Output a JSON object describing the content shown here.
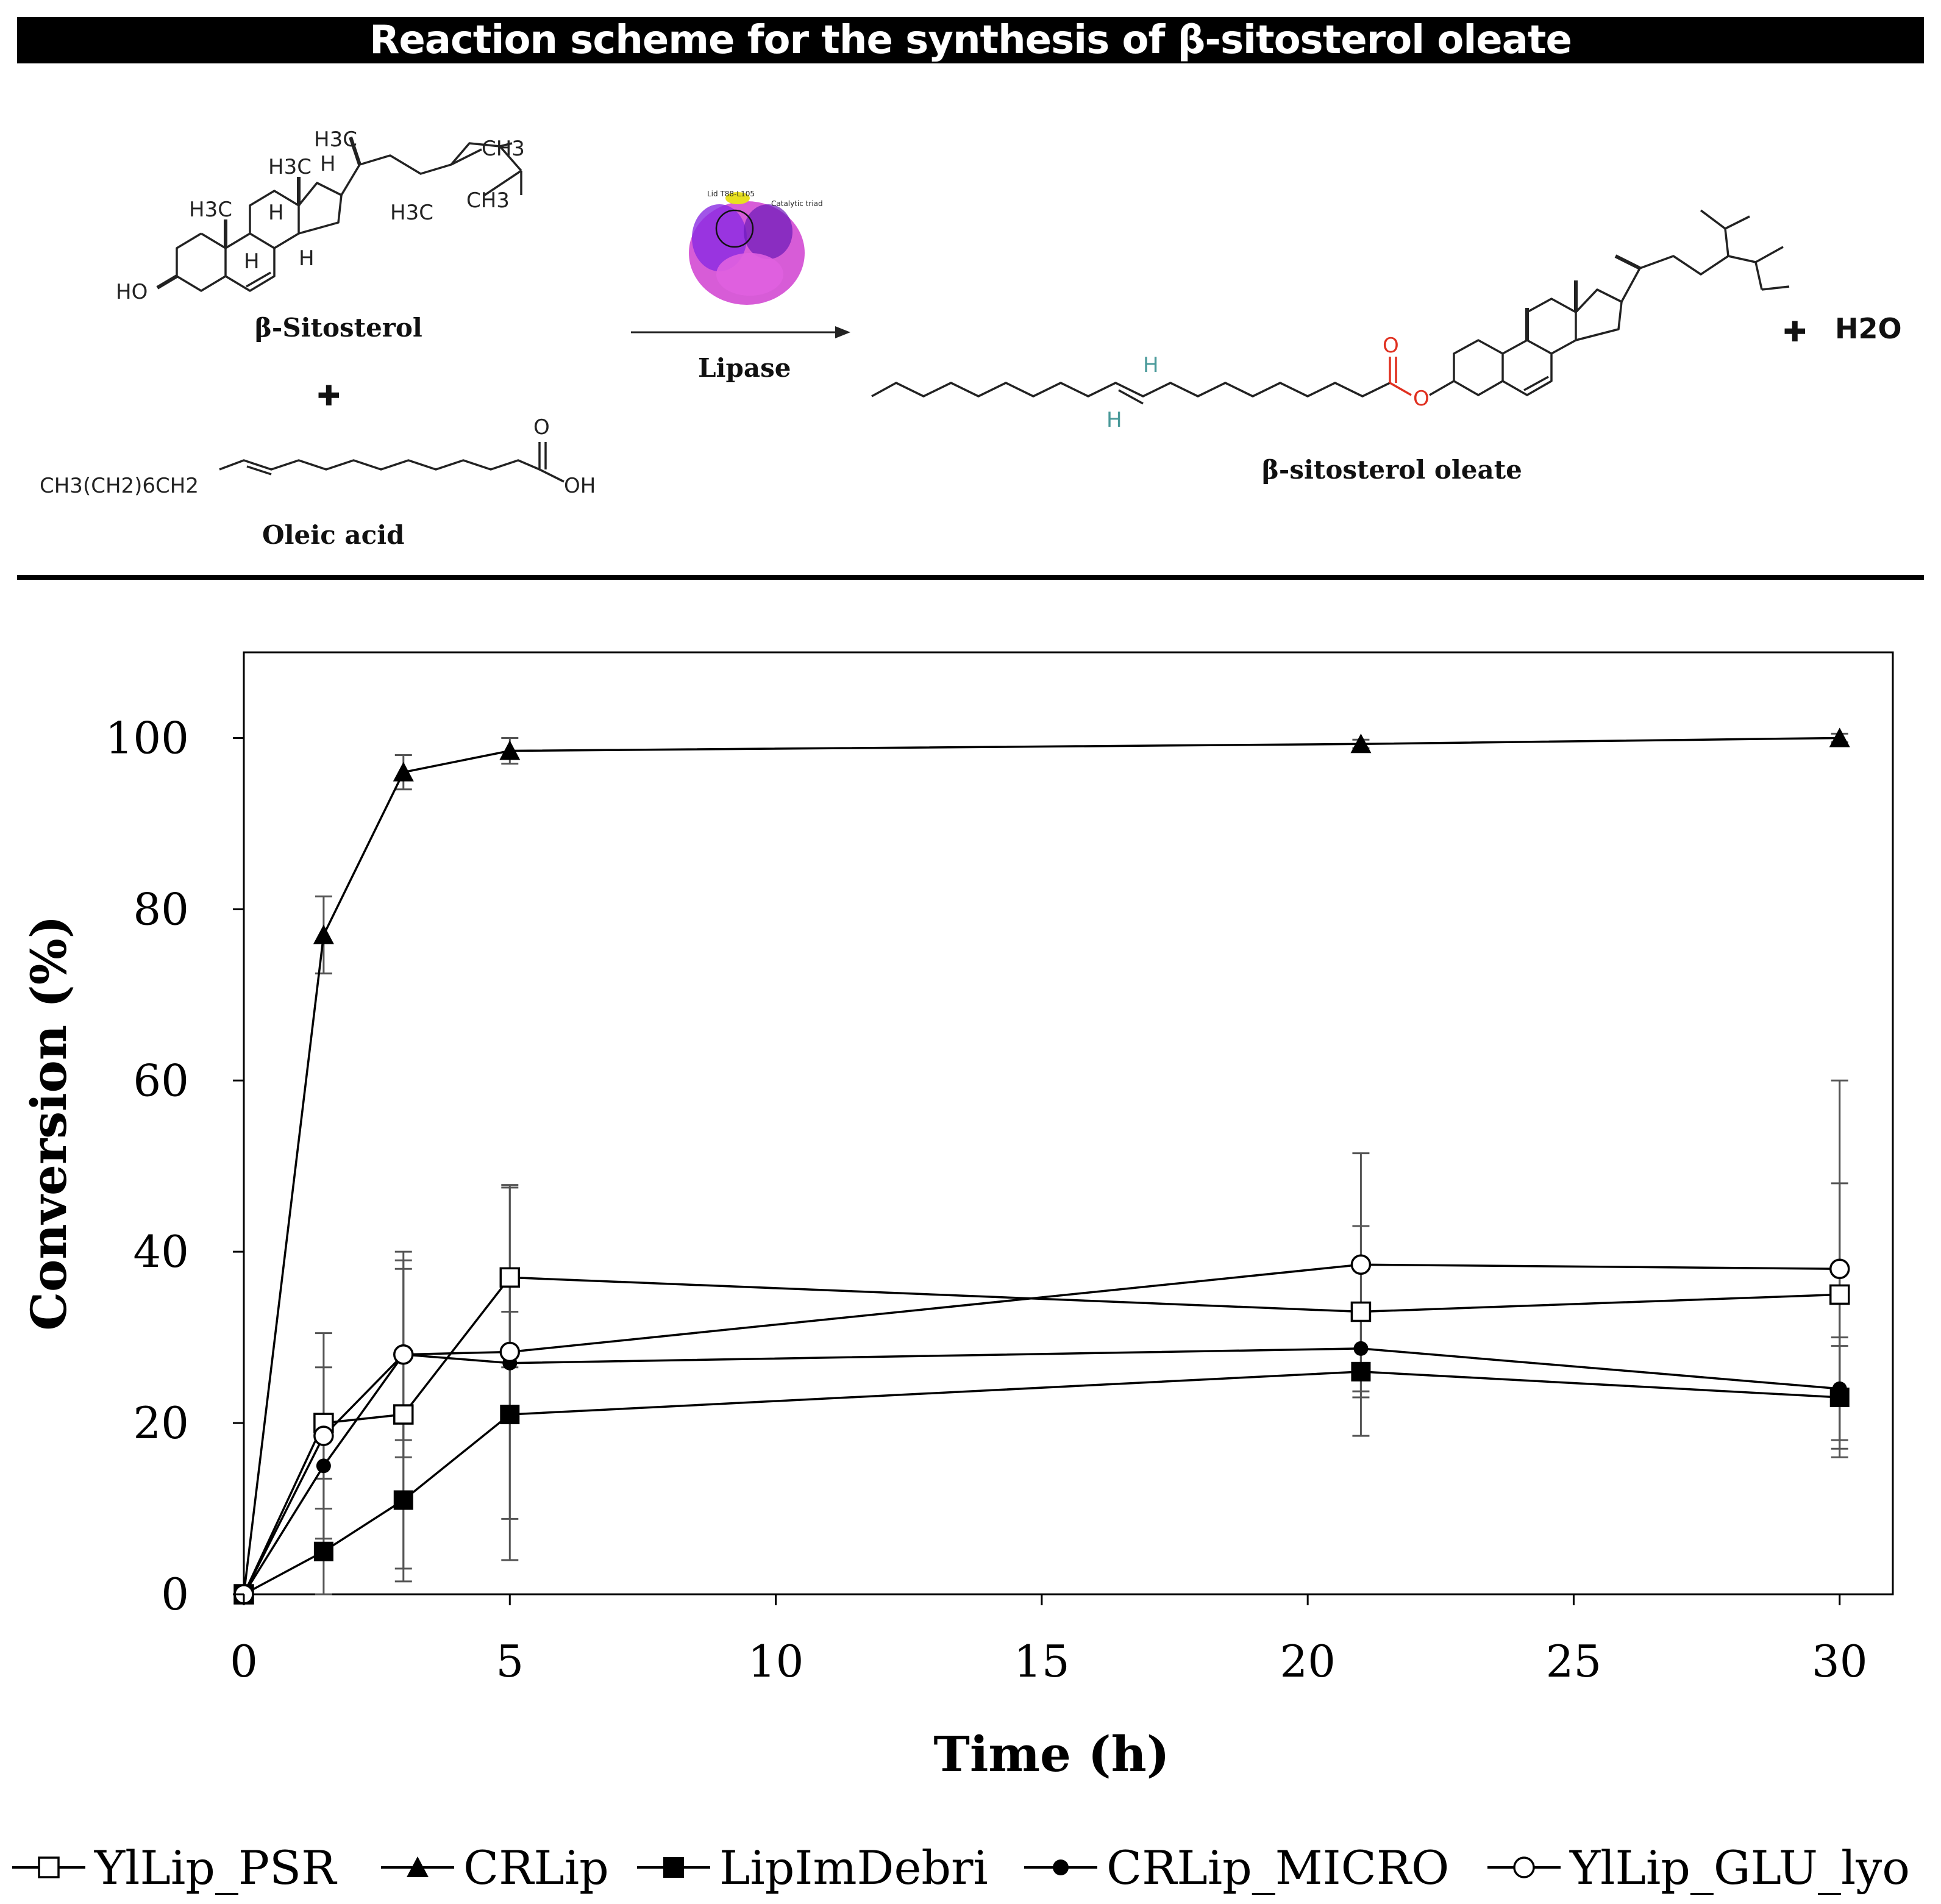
{
  "banner": {
    "title": "Reaction scheme for the synthesis of β-sitosterol oleate"
  },
  "scheme": {
    "reactant1_name": "β-Sitosterol",
    "reactant2_name": "Oleic acid",
    "reactant2_formula_prefix": "CH3(CH2)6CH2",
    "plus": "✚",
    "enzyme_label": "Lipase",
    "enzyme_lid_label": "Lid T88-L105",
    "enzyme_triad_label": "Catalytic triad",
    "product_name": "β-sitosterol oleate",
    "byproduct": "H2O",
    "atom_labels": {
      "ho": "HO",
      "h3c": "H3C",
      "ch3": "CH3",
      "h": "H",
      "o": "O",
      "oh": "OH"
    }
  },
  "chart_data": {
    "type": "line",
    "xlabel": "Time (h)",
    "ylabel": "Conversion (%)",
    "xlim": [
      0,
      31
    ],
    "ylim": [
      0,
      110
    ],
    "xticks": [
      0,
      5,
      10,
      15,
      20,
      25,
      30
    ],
    "yticks": [
      0,
      20,
      40,
      60,
      80,
      100
    ],
    "grid": false,
    "legend_position": "bottom",
    "series": [
      {
        "name": "YlLip_PSR",
        "marker": "open-square",
        "x": [
          0,
          1.5,
          3,
          5,
          21,
          30
        ],
        "y": [
          0,
          20,
          21,
          37,
          33,
          35
        ],
        "err": [
          0,
          6.5,
          18,
          10.5,
          10,
          13
        ]
      },
      {
        "name": "CRLip",
        "marker": "filled-triangle",
        "x": [
          0,
          1.5,
          3,
          5,
          21,
          30
        ],
        "y": [
          0,
          77,
          96,
          98.5,
          99.3,
          100
        ],
        "err": [
          0,
          4.5,
          2,
          1.5,
          0.5,
          0.5
        ]
      },
      {
        "name": "LipImDebri",
        "marker": "filled-square",
        "x": [
          0,
          1.5,
          3,
          5,
          21,
          30
        ],
        "y": [
          0,
          5,
          11,
          21,
          26,
          23
        ],
        "err": [
          0,
          5,
          9.5,
          17,
          7.5,
          6
        ]
      },
      {
        "name": "CRLip_MICRO",
        "marker": "filled-circle",
        "x": [
          0,
          1.5,
          3,
          5,
          21,
          30
        ],
        "y": [
          0,
          15,
          28,
          27,
          28.7,
          24
        ],
        "err": [
          0,
          5,
          10,
          6,
          5,
          6
        ]
      },
      {
        "name": "YlLip_GLU_lyo",
        "marker": "open-circle",
        "x": [
          0,
          1.5,
          3,
          5,
          21,
          30
        ],
        "y": [
          0,
          18.5,
          28,
          28.3,
          38.5,
          38
        ],
        "err": [
          0,
          12,
          12,
          19.5,
          13,
          22
        ]
      }
    ]
  }
}
